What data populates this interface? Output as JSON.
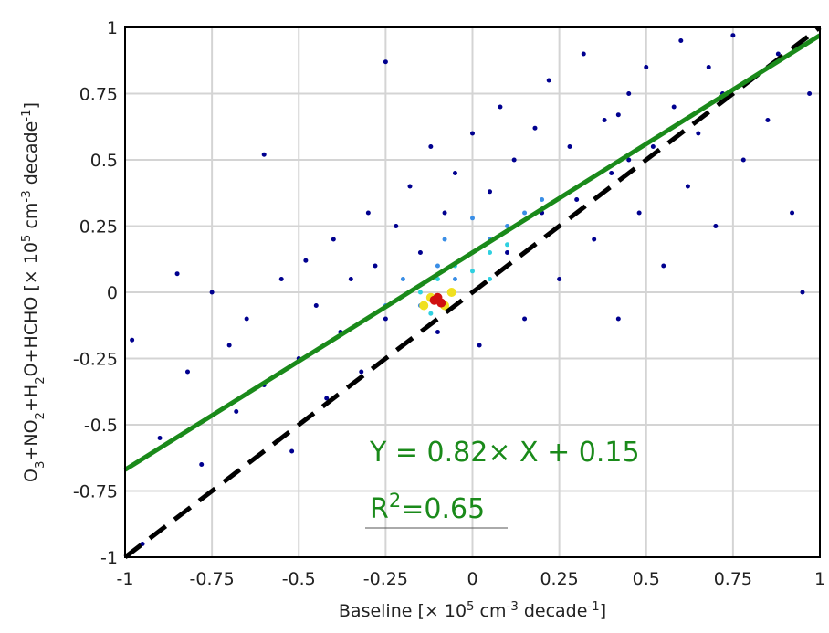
{
  "chart_data": {
    "type": "scatter",
    "x_label": [
      {
        "text": "Baseline [× 10"
      },
      {
        "text": "5",
        "script": "sup"
      },
      {
        "text": " cm"
      },
      {
        "text": "-3",
        "script": "sup"
      },
      {
        "text": " decade"
      },
      {
        "text": "-1",
        "script": "sup"
      },
      {
        "text": "]"
      }
    ],
    "y_label": [
      {
        "text": "O"
      },
      {
        "text": "3",
        "script": "sub"
      },
      {
        "text": "+NO"
      },
      {
        "text": "2",
        "script": "sub"
      },
      {
        "text": "+H"
      },
      {
        "text": "2",
        "script": "sub"
      },
      {
        "text": "O+HCHO [× 10"
      },
      {
        "text": "5",
        "script": "sup"
      },
      {
        "text": " cm"
      },
      {
        "text": "-3",
        "script": "sup"
      },
      {
        "text": " decade"
      },
      {
        "text": "-1",
        "script": "sup"
      },
      {
        "text": "]"
      }
    ],
    "xlim": [
      -1,
      1
    ],
    "ylim": [
      -1,
      1
    ],
    "xticks": [
      -1,
      -0.75,
      -0.5,
      -0.25,
      0,
      0.25,
      0.5,
      0.75,
      1
    ],
    "yticks": [
      -1,
      -0.75,
      -0.5,
      -0.25,
      0,
      0.25,
      0.5,
      0.75,
      1
    ],
    "grid": true,
    "groups": [
      {
        "color": "#00008f",
        "x": [
          -0.98,
          -0.95,
          -0.9,
          -0.85,
          -0.82,
          -0.78,
          -0.75,
          -0.7,
          -0.68,
          -0.65,
          -0.6,
          -0.55,
          -0.52,
          -0.5,
          -0.48,
          -0.45,
          -0.42,
          -0.4,
          -0.38,
          -0.35,
          -0.32,
          -0.3,
          -0.28,
          -0.25,
          -0.25,
          -0.22,
          -0.2,
          -0.18,
          -0.15,
          -0.12,
          -0.1,
          -0.08,
          -0.05,
          0.0,
          0.02,
          0.05,
          0.08,
          0.1,
          0.12,
          0.15,
          0.18,
          0.2,
          0.22,
          0.25,
          0.28,
          0.3,
          0.32,
          0.35,
          0.38,
          0.4,
          0.42,
          0.45,
          0.48,
          0.5,
          0.52,
          0.55,
          0.58,
          0.6,
          0.62,
          0.65,
          0.68,
          0.7,
          0.72,
          0.75,
          0.78,
          0.8,
          0.85,
          0.88,
          0.92,
          0.95,
          0.97,
          -0.6,
          0.42,
          0.45
        ],
        "y": [
          -0.18,
          -0.95,
          -0.55,
          0.07,
          -0.3,
          -0.65,
          0.0,
          -0.2,
          -0.45,
          -0.1,
          -0.35,
          0.05,
          -0.6,
          -0.25,
          0.12,
          -0.05,
          -0.4,
          0.2,
          -0.15,
          0.05,
          -0.3,
          0.3,
          0.1,
          -0.1,
          0.87,
          0.25,
          -0.2,
          0.4,
          0.15,
          0.55,
          -0.15,
          0.3,
          0.45,
          0.6,
          -0.2,
          0.38,
          0.7,
          0.15,
          0.5,
          -0.1,
          0.62,
          0.3,
          0.8,
          0.05,
          0.55,
          0.35,
          0.9,
          0.2,
          0.65,
          0.45,
          -0.1,
          0.75,
          0.3,
          0.85,
          0.55,
          0.1,
          0.7,
          0.95,
          0.4,
          0.6,
          0.85,
          0.25,
          0.75,
          0.97,
          0.5,
          0.8,
          0.65,
          0.9,
          0.3,
          0.0,
          0.75,
          0.52,
          0.67,
          0.5
        ]
      },
      {
        "color": "#3a8ee6",
        "x": [
          -0.2,
          -0.15,
          -0.1,
          -0.05,
          0.0,
          0.05,
          0.1,
          0.15,
          -0.25,
          0.2,
          0.0,
          -0.08
        ],
        "y": [
          0.05,
          -0.05,
          0.1,
          0.05,
          0.15,
          0.2,
          0.25,
          0.3,
          -0.05,
          0.35,
          0.28,
          0.2
        ]
      },
      {
        "color": "#2fd0e0",
        "x": [
          -0.15,
          -0.1,
          -0.05,
          0.0,
          0.05,
          0.1,
          -0.12,
          0.05
        ],
        "y": [
          0.0,
          0.05,
          0.1,
          0.08,
          0.15,
          0.18,
          -0.08,
          0.05
        ]
      },
      {
        "color": "#f0e020",
        "x": [
          -0.12,
          -0.08,
          -0.14,
          -0.06
        ],
        "y": [
          -0.02,
          -0.05,
          -0.05,
          0.0
        ]
      },
      {
        "color": "#d01010",
        "x": [
          -0.11,
          -0.09,
          -0.1
        ],
        "y": [
          -0.03,
          -0.04,
          -0.02
        ]
      }
    ],
    "fit_line": {
      "slope": 0.82,
      "intercept": 0.15,
      "color": "#1a8a1a"
    },
    "reference_line": {
      "slope": 1,
      "intercept": 0,
      "color": "#000000"
    },
    "fit_equation": "Y = 0.82× X + 0.15",
    "r_squared": [
      {
        "text": "R"
      },
      {
        "text": "2",
        "script": "sup"
      },
      {
        "text": "=0.65"
      }
    ]
  }
}
